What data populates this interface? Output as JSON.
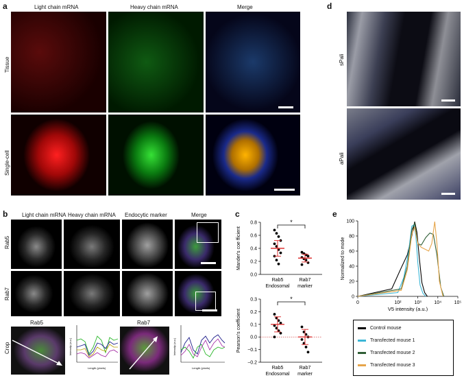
{
  "panels": {
    "a": {
      "label": "a",
      "columns": [
        "Light chain mRNA",
        "Heavy chain mRNA",
        "Merge"
      ],
      "rows": [
        "Tissue",
        "Single-cell"
      ]
    },
    "b": {
      "label": "b",
      "columns": [
        "Light chain mRNA",
        "Heavy chain mRNA",
        "Endocytic marker",
        "Merge"
      ],
      "rows": [
        "Rab5",
        "Rab7",
        "Crop"
      ],
      "crop_titles": [
        "Rab5",
        "Rab7"
      ],
      "profile_xlabel": "Length (pixels)",
      "profile_ylabel": "Intensity (a.u.)"
    },
    "c": {
      "label": "c",
      "sig": "*",
      "top_ylabel": "Mander's coe fficient",
      "bottom_ylabel": "Pearson's coefficient",
      "xcat1": [
        "Rab5",
        "Endosomal"
      ],
      "xcat2": [
        "Rab7",
        "marker"
      ]
    },
    "d": {
      "label": "d",
      "rows": [
        "sPali",
        "aPali"
      ]
    },
    "e": {
      "label": "e",
      "ylabel": "Normalized to mode",
      "xlabel": "V5 intensity (a.u.)",
      "legend": [
        "Control mouse",
        "Transfected mouse 1",
        "Transfected mouse 2",
        "Transfected mouse 3"
      ],
      "colors": [
        "#000000",
        "#3bb6d6",
        "#2f5e35",
        "#e6a54a"
      ]
    }
  },
  "chart_data": [
    {
      "type": "scatter",
      "title": "",
      "ylabel": "Mander's coe fficient",
      "categories": [
        "Rab5 Endosomal",
        "Rab7 marker"
      ],
      "ylim": [
        0,
        0.8
      ],
      "yticks": [
        "0.0",
        "0.2",
        "0.4",
        "0.6",
        "0.8"
      ],
      "series": [
        {
          "values": [
            0.68,
            0.63,
            0.58,
            0.52,
            0.47,
            0.43,
            0.38,
            0.33,
            0.28,
            0.22,
            0.16
          ],
          "mean": 0.4,
          "sem": 0.12
        },
        {
          "values": [
            0.34,
            0.32,
            0.3,
            0.28,
            0.26,
            0.24,
            0.22,
            0.18,
            0.15
          ],
          "mean": 0.25,
          "sem": 0.06
        }
      ]
    },
    {
      "type": "scatter",
      "title": "",
      "ylabel": "Pearson's coefficient",
      "categories": [
        "Rab5 Endosomal",
        "Rab7 marker"
      ],
      "ylim": [
        -0.2,
        0.3
      ],
      "yticks": [
        "−0.2",
        "−0.1",
        "0.0",
        "0.1",
        "0.2",
        "0.3"
      ],
      "series": [
        {
          "values": [
            0.18,
            0.15,
            0.13,
            0.11,
            0.09,
            0.07,
            0.05,
            0.03,
            0.0
          ],
          "mean": 0.1,
          "sem": 0.06
        },
        {
          "values": [
            0.08,
            0.04,
            0.02,
            0.0,
            -0.02,
            -0.05,
            -0.08,
            -0.12
          ],
          "mean": 0.0,
          "sem": 0.06
        }
      ]
    },
    {
      "type": "line",
      "title": "",
      "xlabel": "V5 intensity (a.u.)",
      "ylabel": "Normalized to mode",
      "xscale": "log",
      "xlim": [
        0,
        100000
      ],
      "xticks": [
        "0",
        "10²",
        "10³",
        "10⁴",
        "10⁵"
      ],
      "ylim": [
        0,
        100
      ],
      "yticks": [
        "0",
        "20",
        "40",
        "60",
        "80",
        "100"
      ],
      "series": [
        {
          "name": "Control mouse",
          "x": [
            0,
            50,
            150,
            300,
            500,
            700,
            900,
            1200,
            1600,
            2200,
            3000
          ],
          "y": [
            0,
            10,
            38,
            55,
            80,
            99,
            85,
            50,
            18,
            5,
            0
          ]
        },
        {
          "name": "Transfected mouse 1",
          "x": [
            0,
            100,
            200,
            350,
            500,
            650,
            800,
            1000,
            1300,
            1800,
            2500
          ],
          "y": [
            0,
            5,
            25,
            60,
            93,
            95,
            80,
            45,
            15,
            4,
            0
          ]
        },
        {
          "name": "Transfected mouse 2",
          "x": [
            0,
            150,
            300,
            500,
            700,
            1000,
            1500,
            2500,
            4000,
            6000,
            9000,
            14000,
            20000
          ],
          "y": [
            0,
            10,
            40,
            88,
            97,
            70,
            68,
            78,
            84,
            82,
            55,
            12,
            0
          ]
        },
        {
          "name": "Transfected mouse 3",
          "x": [
            0,
            150,
            300,
            500,
            700,
            1000,
            1500,
            2500,
            3500,
            5000,
            7000,
            9000,
            12000,
            18000
          ],
          "y": [
            0,
            8,
            35,
            82,
            92,
            70,
            65,
            62,
            60,
            70,
            99,
            70,
            20,
            0
          ]
        }
      ]
    }
  ]
}
